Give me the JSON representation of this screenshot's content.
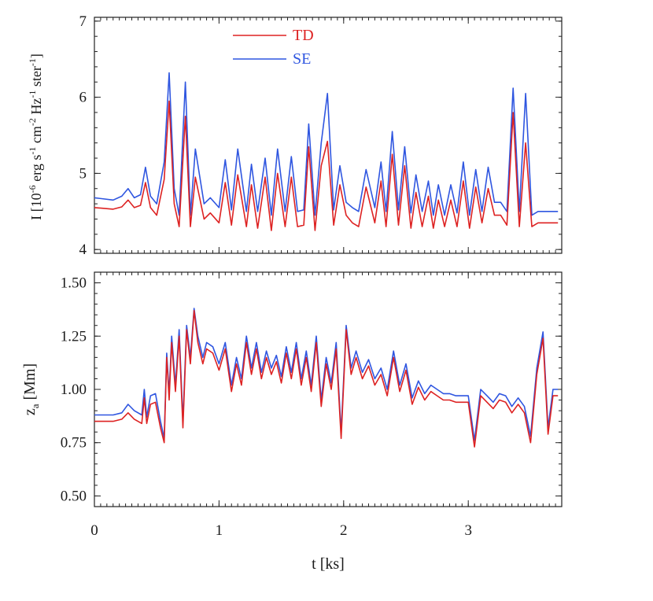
{
  "colors": {
    "TD": "#dd2222",
    "SE": "#2f56e0"
  },
  "chart_data": [
    {
      "type": "line",
      "title": "",
      "xlabel": "",
      "ylabel_parts": {
        "main": "I [10",
        "e1": "-6",
        "t1": " erg s",
        "e2": "-1",
        "t2": " cm",
        "e3": "-2",
        "t3": " Hz",
        "e4": "-1",
        "t4": " ster",
        "e5": "-1",
        "t5": "]"
      },
      "xlim": [
        0,
        3.75
      ],
      "ylim": [
        3.95,
        7.05
      ],
      "yticks": [
        4,
        5,
        6,
        7
      ],
      "ytick_labels": [
        "4",
        "5",
        "6",
        "7"
      ],
      "legend": {
        "position": "top-left",
        "entries": [
          "TD",
          "SE"
        ]
      },
      "series": [
        {
          "name": "SE",
          "x": [
            0,
            0.15,
            0.22,
            0.27,
            0.32,
            0.37,
            0.41,
            0.45,
            0.5,
            0.56,
            0.6,
            0.64,
            0.68,
            0.73,
            0.77,
            0.81,
            0.88,
            0.93,
            1.0,
            1.05,
            1.1,
            1.15,
            1.22,
            1.26,
            1.31,
            1.37,
            1.42,
            1.47,
            1.53,
            1.58,
            1.63,
            1.68,
            1.72,
            1.77,
            1.82,
            1.87,
            1.92,
            1.97,
            2.02,
            2.07,
            2.12,
            2.18,
            2.25,
            2.3,
            2.34,
            2.39,
            2.44,
            2.49,
            2.54,
            2.58,
            2.63,
            2.68,
            2.72,
            2.76,
            2.81,
            2.86,
            2.91,
            2.96,
            3.01,
            3.06,
            3.11,
            3.16,
            3.21,
            3.26,
            3.31,
            3.36,
            3.41,
            3.46,
            3.51,
            3.56,
            3.6,
            3.64,
            3.68,
            3.72
          ],
          "y": [
            4.68,
            4.65,
            4.7,
            4.8,
            4.68,
            4.72,
            5.08,
            4.7,
            4.6,
            5.15,
            6.32,
            4.8,
            4.45,
            6.2,
            4.45,
            5.32,
            4.6,
            4.68,
            4.55,
            5.18,
            4.52,
            5.32,
            4.5,
            5.12,
            4.5,
            5.2,
            4.45,
            5.32,
            4.5,
            5.22,
            4.5,
            4.52,
            5.65,
            4.45,
            5.4,
            6.05,
            4.52,
            5.1,
            4.62,
            4.55,
            4.5,
            5.05,
            4.55,
            5.15,
            4.5,
            5.55,
            4.52,
            5.35,
            4.48,
            4.98,
            4.5,
            4.9,
            4.45,
            4.85,
            4.45,
            4.85,
            4.48,
            5.15,
            4.45,
            5.05,
            4.5,
            5.08,
            4.62,
            4.62,
            4.5,
            6.12,
            4.5,
            6.05,
            4.45,
            4.5,
            4.5,
            4.5,
            4.5,
            4.5
          ]
        },
        {
          "name": "TD",
          "x": [
            0,
            0.15,
            0.22,
            0.27,
            0.32,
            0.37,
            0.41,
            0.45,
            0.5,
            0.56,
            0.6,
            0.64,
            0.68,
            0.73,
            0.77,
            0.81,
            0.88,
            0.93,
            1.0,
            1.05,
            1.1,
            1.15,
            1.22,
            1.26,
            1.31,
            1.37,
            1.42,
            1.47,
            1.53,
            1.58,
            1.63,
            1.68,
            1.72,
            1.77,
            1.82,
            1.87,
            1.92,
            1.97,
            2.02,
            2.07,
            2.12,
            2.18,
            2.25,
            2.3,
            2.34,
            2.39,
            2.44,
            2.49,
            2.54,
            2.58,
            2.63,
            2.68,
            2.72,
            2.76,
            2.81,
            2.86,
            2.91,
            2.96,
            3.01,
            3.06,
            3.11,
            3.16,
            3.21,
            3.26,
            3.31,
            3.36,
            3.41,
            3.46,
            3.51,
            3.56,
            3.6,
            3.64,
            3.68,
            3.72
          ],
          "y": [
            4.55,
            4.53,
            4.56,
            4.65,
            4.55,
            4.58,
            4.88,
            4.55,
            4.45,
            4.92,
            5.95,
            4.6,
            4.3,
            5.75,
            4.3,
            4.95,
            4.4,
            4.48,
            4.35,
            4.88,
            4.32,
            4.98,
            4.3,
            4.85,
            4.28,
            4.95,
            4.25,
            5.0,
            4.3,
            4.95,
            4.3,
            4.32,
            5.35,
            4.25,
            5.1,
            5.42,
            4.32,
            4.85,
            4.45,
            4.35,
            4.3,
            4.82,
            4.35,
            4.9,
            4.3,
            5.25,
            4.32,
            5.1,
            4.28,
            4.75,
            4.3,
            4.7,
            4.28,
            4.65,
            4.3,
            4.65,
            4.3,
            4.9,
            4.28,
            4.82,
            4.35,
            4.8,
            4.45,
            4.45,
            4.32,
            5.8,
            4.3,
            5.4,
            4.3,
            4.35,
            4.35,
            4.35,
            4.35,
            4.35
          ]
        }
      ]
    },
    {
      "type": "line",
      "title": "",
      "xlabel": "t [ks]",
      "ylabel_parts": {
        "main": "z",
        "sub": "a",
        "unit": " [Mm]"
      },
      "xlim": [
        0,
        3.75
      ],
      "ylim": [
        0.45,
        1.55
      ],
      "yticks": [
        0.5,
        0.75,
        1.0,
        1.25,
        1.5
      ],
      "ytick_labels": [
        "0.50",
        "0.75",
        "1.00",
        "1.25",
        "1.50"
      ],
      "xticks": [
        0,
        1,
        2,
        3
      ],
      "xtick_labels": [
        "0",
        "1",
        "2",
        "3"
      ],
      "series": [
        {
          "name": "SE",
          "x": [
            0,
            0.15,
            0.22,
            0.27,
            0.32,
            0.38,
            0.4,
            0.42,
            0.45,
            0.49,
            0.53,
            0.56,
            0.58,
            0.6,
            0.62,
            0.65,
            0.68,
            0.71,
            0.74,
            0.77,
            0.8,
            0.83,
            0.87,
            0.9,
            0.95,
            1.0,
            1.05,
            1.1,
            1.14,
            1.18,
            1.22,
            1.26,
            1.3,
            1.34,
            1.38,
            1.42,
            1.46,
            1.5,
            1.54,
            1.58,
            1.62,
            1.66,
            1.7,
            1.74,
            1.78,
            1.82,
            1.86,
            1.9,
            1.94,
            1.98,
            2.02,
            2.06,
            2.1,
            2.15,
            2.2,
            2.25,
            2.3,
            2.35,
            2.4,
            2.45,
            2.5,
            2.55,
            2.6,
            2.65,
            2.7,
            2.75,
            2.8,
            2.85,
            2.9,
            2.95,
            3.0,
            3.05,
            3.1,
            3.15,
            3.2,
            3.25,
            3.3,
            3.35,
            3.4,
            3.45,
            3.5,
            3.55,
            3.6,
            3.64,
            3.68,
            3.72
          ],
          "y": [
            0.88,
            0.88,
            0.89,
            0.93,
            0.9,
            0.88,
            1.0,
            0.87,
            0.97,
            0.98,
            0.85,
            0.77,
            1.17,
            0.98,
            1.25,
            1.02,
            1.28,
            0.85,
            1.3,
            1.15,
            1.38,
            1.25,
            1.15,
            1.22,
            1.2,
            1.12,
            1.22,
            1.02,
            1.15,
            1.05,
            1.25,
            1.1,
            1.22,
            1.08,
            1.18,
            1.1,
            1.16,
            1.06,
            1.2,
            1.08,
            1.22,
            1.05,
            1.18,
            1.02,
            1.25,
            0.95,
            1.15,
            1.03,
            1.22,
            0.8,
            1.3,
            1.1,
            1.18,
            1.08,
            1.14,
            1.05,
            1.1,
            1.0,
            1.18,
            1.02,
            1.12,
            0.96,
            1.04,
            0.98,
            1.02,
            1.0,
            0.98,
            0.98,
            0.97,
            0.97,
            0.97,
            0.76,
            1.0,
            0.97,
            0.94,
            0.98,
            0.97,
            0.92,
            0.96,
            0.92,
            0.78,
            1.1,
            1.27,
            0.82,
            1.0,
            1.0
          ]
        },
        {
          "name": "TD",
          "x": [
            0,
            0.15,
            0.22,
            0.27,
            0.32,
            0.38,
            0.4,
            0.42,
            0.45,
            0.49,
            0.53,
            0.56,
            0.58,
            0.6,
            0.62,
            0.65,
            0.68,
            0.71,
            0.74,
            0.77,
            0.8,
            0.83,
            0.87,
            0.9,
            0.95,
            1.0,
            1.05,
            1.1,
            1.14,
            1.18,
            1.22,
            1.26,
            1.3,
            1.34,
            1.38,
            1.42,
            1.46,
            1.5,
            1.54,
            1.58,
            1.62,
            1.66,
            1.7,
            1.74,
            1.78,
            1.82,
            1.86,
            1.9,
            1.94,
            1.98,
            2.02,
            2.06,
            2.1,
            2.15,
            2.2,
            2.25,
            2.3,
            2.35,
            2.4,
            2.45,
            2.5,
            2.55,
            2.6,
            2.65,
            2.7,
            2.75,
            2.8,
            2.85,
            2.9,
            2.95,
            3.0,
            3.05,
            3.1,
            3.15,
            3.2,
            3.25,
            3.3,
            3.35,
            3.4,
            3.45,
            3.5,
            3.55,
            3.6,
            3.64,
            3.68,
            3.72
          ],
          "y": [
            0.85,
            0.85,
            0.86,
            0.89,
            0.86,
            0.84,
            0.96,
            0.84,
            0.93,
            0.94,
            0.82,
            0.75,
            1.15,
            0.95,
            1.22,
            0.99,
            1.25,
            0.82,
            1.28,
            1.12,
            1.37,
            1.22,
            1.12,
            1.19,
            1.17,
            1.09,
            1.19,
            0.99,
            1.12,
            1.02,
            1.22,
            1.07,
            1.19,
            1.05,
            1.15,
            1.07,
            1.13,
            1.03,
            1.17,
            1.05,
            1.19,
            1.02,
            1.15,
            0.99,
            1.22,
            0.92,
            1.12,
            1.0,
            1.19,
            0.77,
            1.28,
            1.07,
            1.15,
            1.05,
            1.11,
            1.02,
            1.07,
            0.97,
            1.15,
            0.99,
            1.09,
            0.93,
            1.01,
            0.95,
            0.99,
            0.97,
            0.95,
            0.95,
            0.94,
            0.94,
            0.94,
            0.73,
            0.97,
            0.94,
            0.91,
            0.95,
            0.94,
            0.89,
            0.93,
            0.89,
            0.75,
            1.07,
            1.24,
            0.79,
            0.97,
            0.97
          ]
        }
      ]
    }
  ]
}
